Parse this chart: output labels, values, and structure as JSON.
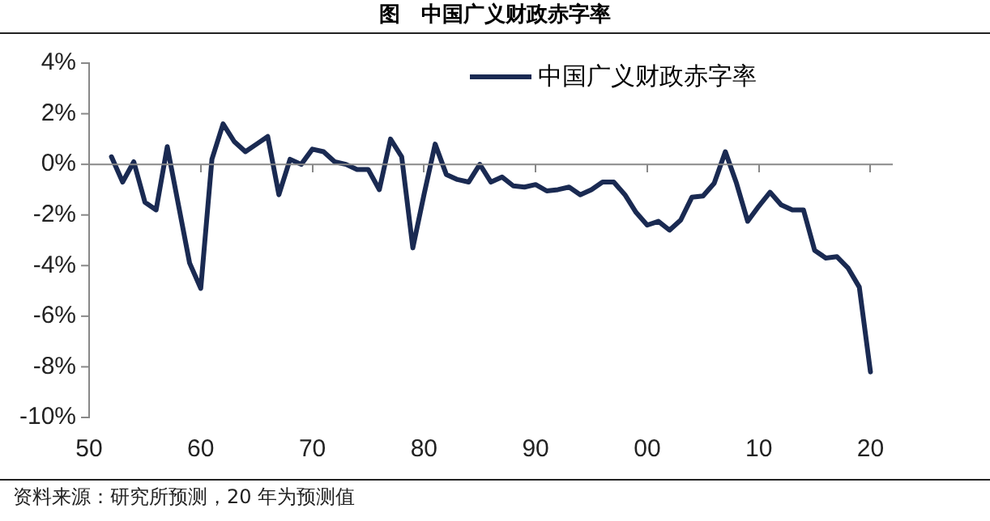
{
  "chart_data": {
    "type": "line",
    "title": "图　中国广义财政赤字率",
    "x": [
      1952,
      1953,
      1954,
      1955,
      1956,
      1957,
      1958,
      1959,
      1960,
      1961,
      1962,
      1963,
      1964,
      1965,
      1966,
      1967,
      1968,
      1969,
      1970,
      1971,
      1972,
      1973,
      1974,
      1975,
      1976,
      1977,
      1978,
      1979,
      1980,
      1981,
      1982,
      1983,
      1984,
      1985,
      1986,
      1987,
      1988,
      1989,
      1990,
      1991,
      1992,
      1993,
      1994,
      1995,
      1996,
      1997,
      1998,
      1999,
      2000,
      2001,
      2002,
      2003,
      2004,
      2005,
      2006,
      2007,
      2008,
      2009,
      2010,
      2011,
      2012,
      2013,
      2014,
      2015,
      2016,
      2017,
      2018,
      2019,
      2020
    ],
    "series": [
      {
        "name": "中国广义财政赤字率",
        "color": "#1a2a52",
        "values": [
          0.3,
          -0.7,
          0.1,
          -1.5,
          -1.8,
          0.7,
          -1.6,
          -3.9,
          -4.9,
          0.2,
          1.6,
          0.9,
          0.5,
          0.8,
          1.1,
          -1.2,
          0.2,
          0.0,
          0.6,
          0.5,
          0.1,
          0.0,
          -0.2,
          -0.2,
          -1.0,
          1.0,
          0.3,
          -3.3,
          -1.2,
          0.8,
          -0.4,
          -0.6,
          -0.7,
          0.0,
          -0.7,
          -0.5,
          -0.85,
          -0.9,
          -0.8,
          -1.05,
          -1.0,
          -0.9,
          -1.2,
          -1.0,
          -0.7,
          -0.7,
          -1.2,
          -1.9,
          -2.4,
          -2.25,
          -2.6,
          -2.2,
          -1.3,
          -1.25,
          -0.75,
          0.5,
          -0.75,
          -2.25,
          -1.65,
          -1.1,
          -1.6,
          -1.8,
          -1.8,
          -3.4,
          -3.7,
          -3.65,
          -4.1,
          -4.85,
          -8.2
        ]
      }
    ],
    "xlim": [
      1950,
      2022
    ],
    "xticks": [
      {
        "value": 1950,
        "label": "50"
      },
      {
        "value": 1960,
        "label": "60"
      },
      {
        "value": 1970,
        "label": "70"
      },
      {
        "value": 1980,
        "label": "80"
      },
      {
        "value": 1990,
        "label": "90"
      },
      {
        "value": 2000,
        "label": "00"
      },
      {
        "value": 2010,
        "label": "10"
      },
      {
        "value": 2020,
        "label": "20"
      }
    ],
    "ylim": [
      -10,
      4
    ],
    "yticks": [
      {
        "value": 4,
        "label": "4%"
      },
      {
        "value": 2,
        "label": "2%"
      },
      {
        "value": 0,
        "label": "0%"
      },
      {
        "value": -2,
        "label": "-2%"
      },
      {
        "value": -4,
        "label": "-4%"
      },
      {
        "value": -6,
        "label": "-6%"
      },
      {
        "value": -8,
        "label": "-8%"
      },
      {
        "value": -10,
        "label": "-10%"
      }
    ],
    "ref_lines": [
      {
        "axis": "y",
        "value": 0,
        "color": "#888888"
      }
    ],
    "legend": "top right",
    "marker": "none",
    "line_style": "solid",
    "grid": false,
    "annotations": [
      "资料来源：研究所预测，20 年为预测值"
    ]
  }
}
